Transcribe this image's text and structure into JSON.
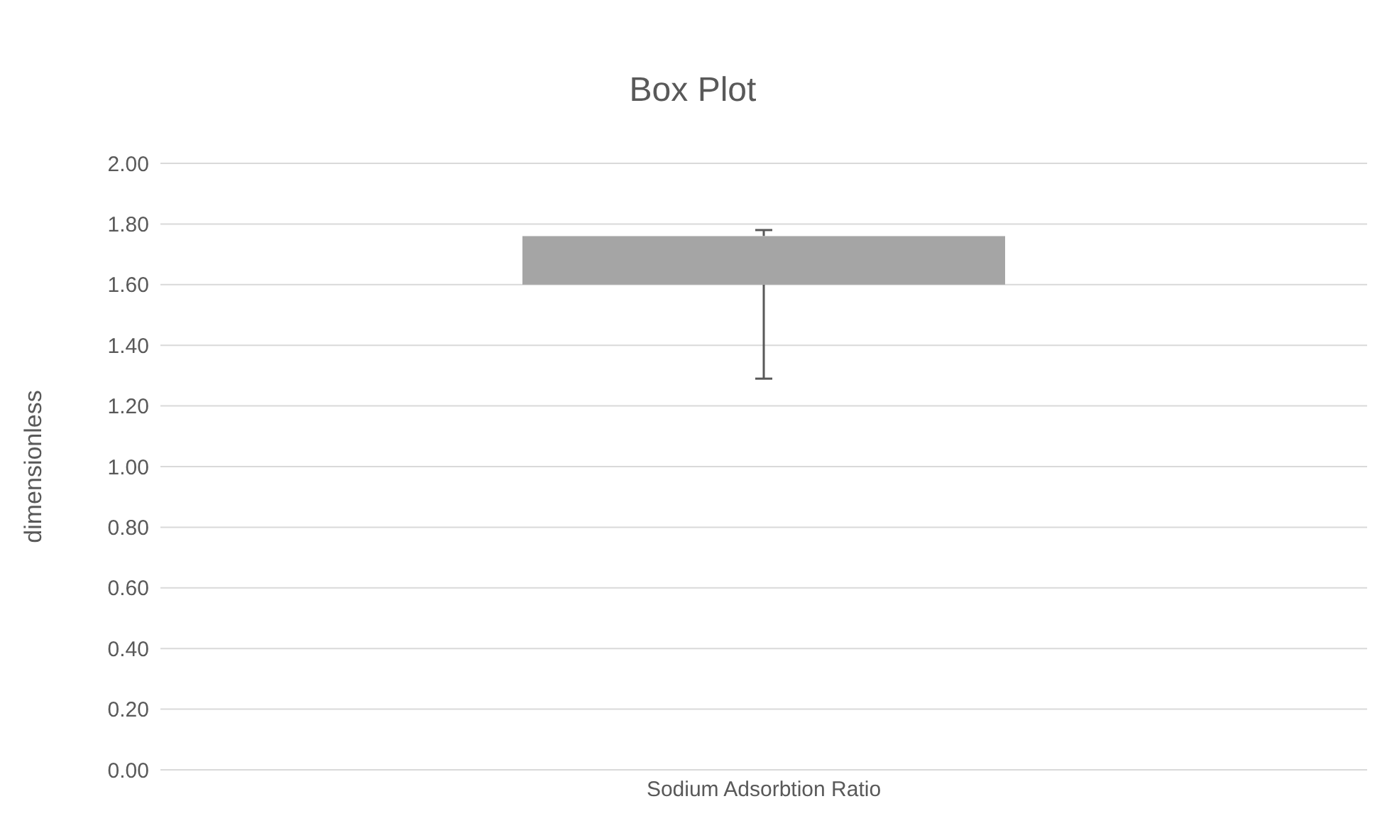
{
  "chart_data": {
    "type": "bar",
    "title": "Box Plot",
    "ylabel": "dimensionless",
    "categories": [
      "Sodium Adsorbtion Ratio"
    ],
    "base": [
      1.6
    ],
    "values": [
      0.16
    ],
    "errors": [
      [
        1.29,
        1.78
      ]
    ],
    "color": "#a5a5a5",
    "ylim": [
      0,
      2
    ],
    "yticks": [
      {
        "value": 0,
        "label": "0.00"
      },
      {
        "value": 0.2,
        "label": "0.20"
      },
      {
        "value": 0.4,
        "label": "0.40"
      },
      {
        "value": 0.6,
        "label": "0.60"
      },
      {
        "value": 0.8,
        "label": "0.80"
      },
      {
        "value": 1,
        "label": "1.00"
      },
      {
        "value": 1.2,
        "label": "1.20"
      },
      {
        "value": 1.4,
        "label": "1.40"
      },
      {
        "value": 1.6,
        "label": "1.60"
      },
      {
        "value": 1.8,
        "label": "1.80"
      },
      {
        "value": 2,
        "label": "2.00"
      }
    ],
    "grid": "y",
    "legend": false
  }
}
